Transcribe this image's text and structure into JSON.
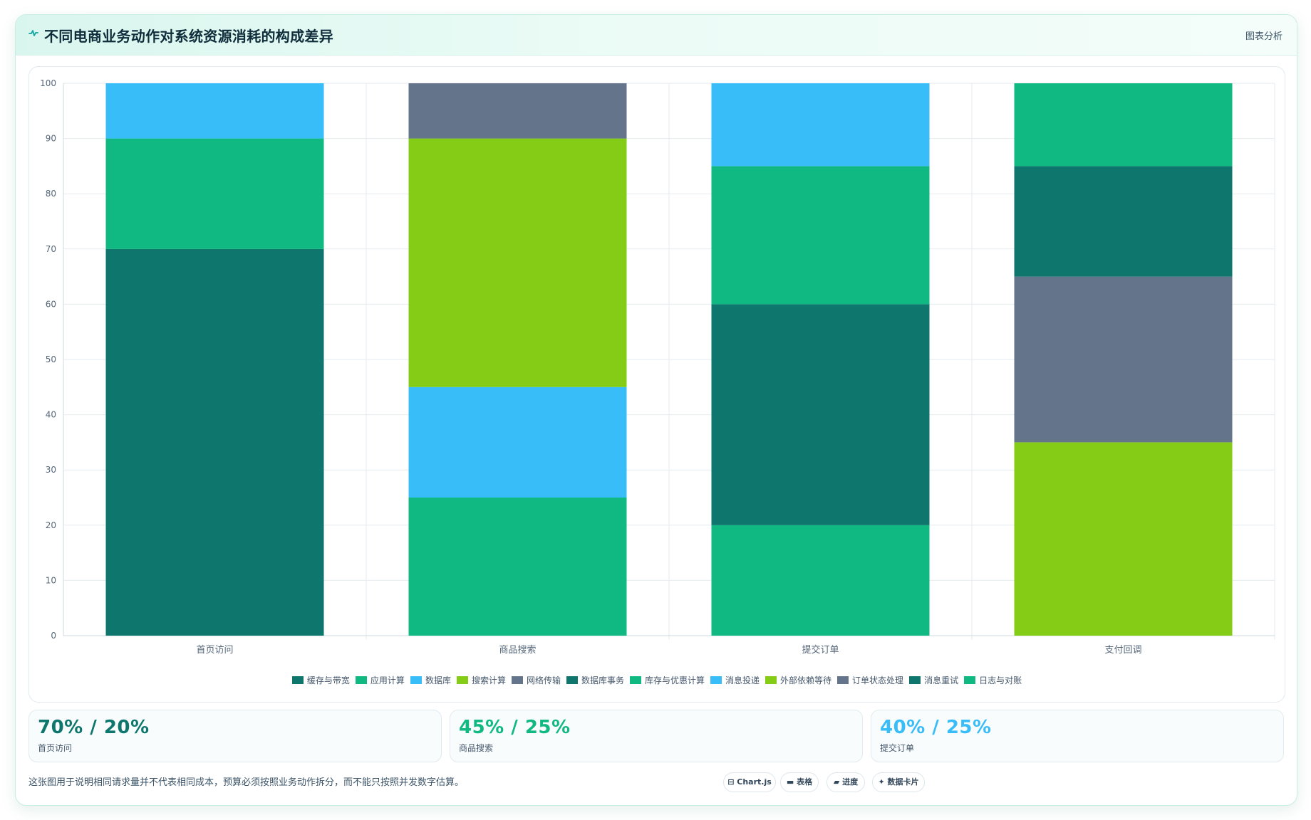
{
  "header": {
    "icon": "pulse-icon",
    "title": "不同电商业务动作对系统资源消耗的构成差异",
    "tag": "图表分析"
  },
  "chart_data": {
    "type": "bar",
    "stacked": true,
    "categories": [
      "首页访问",
      "商品搜索",
      "提交订单",
      "支付回调"
    ],
    "ylim": [
      0,
      100
    ],
    "yticks": [
      0,
      10,
      20,
      30,
      40,
      50,
      60,
      70,
      80,
      90,
      100
    ],
    "grid": true,
    "legend_position": "bottom",
    "series": [
      {
        "name": "缓存与带宽",
        "color": "#0f766e",
        "values": [
          70,
          0,
          0,
          0
        ]
      },
      {
        "name": "应用计算",
        "color": "#10b981",
        "values": [
          20,
          0,
          0,
          0
        ]
      },
      {
        "name": "数据库",
        "color": "#38bdf8",
        "values": [
          10,
          0,
          0,
          0
        ]
      },
      {
        "name": "搜索计算",
        "color": "#84cc16",
        "values": [
          0,
          45,
          0,
          0
        ]
      },
      {
        "name": "网络传输",
        "color": "#64748b",
        "values": [
          0,
          10,
          0,
          0
        ]
      },
      {
        "name": "数据库事务",
        "color": "#0f766e",
        "values": [
          0,
          0,
          40,
          0
        ]
      },
      {
        "name": "库存与优惠计算",
        "color": "#10b981",
        "values": [
          0,
          25,
          25,
          0
        ]
      },
      {
        "name": "消息投递",
        "color": "#38bdf8",
        "values": [
          0,
          20,
          15,
          0
        ]
      },
      {
        "name": "外部依赖等待",
        "color": "#84cc16",
        "values": [
          0,
          0,
          0,
          35
        ]
      },
      {
        "name": "订单状态处理",
        "color": "#64748b",
        "values": [
          0,
          0,
          0,
          30
        ]
      },
      {
        "name": "消息重试",
        "color": "#0f766e",
        "values": [
          0,
          0,
          0,
          20
        ]
      },
      {
        "name": "日志与对账",
        "color": "#10b981",
        "values": [
          0,
          0,
          20,
          15
        ]
      }
    ],
    "stack_order": [
      [
        0,
        1,
        2
      ],
      [
        6,
        7,
        3,
        4
      ],
      [
        11,
        5,
        6,
        7
      ],
      [
        8,
        9,
        10,
        11
      ]
    ]
  },
  "stats": [
    {
      "value": "70% / 20%",
      "label": "首页访问",
      "color": "#0f766e"
    },
    {
      "value": "45% / 25%",
      "label": "商品搜索",
      "color": "#10b981"
    },
    {
      "value": "40% / 25%",
      "label": "提交订单",
      "color": "#38bdf8"
    }
  ],
  "footer": {
    "note": "这张图用于说明相同请求量并不代表相同成本，预算必须按照业务动作拆分，而不能只按照并发数字估算。",
    "pills": [
      {
        "icon": "chart-icon",
        "glyph": "⊟",
        "label": "Chart.js"
      },
      {
        "icon": "table-icon",
        "glyph": "▬",
        "label": "表格"
      },
      {
        "icon": "progress-icon",
        "glyph": "▰",
        "label": "进度"
      },
      {
        "icon": "sparkle-icon",
        "glyph": "✦",
        "label": "数据卡片"
      }
    ]
  }
}
